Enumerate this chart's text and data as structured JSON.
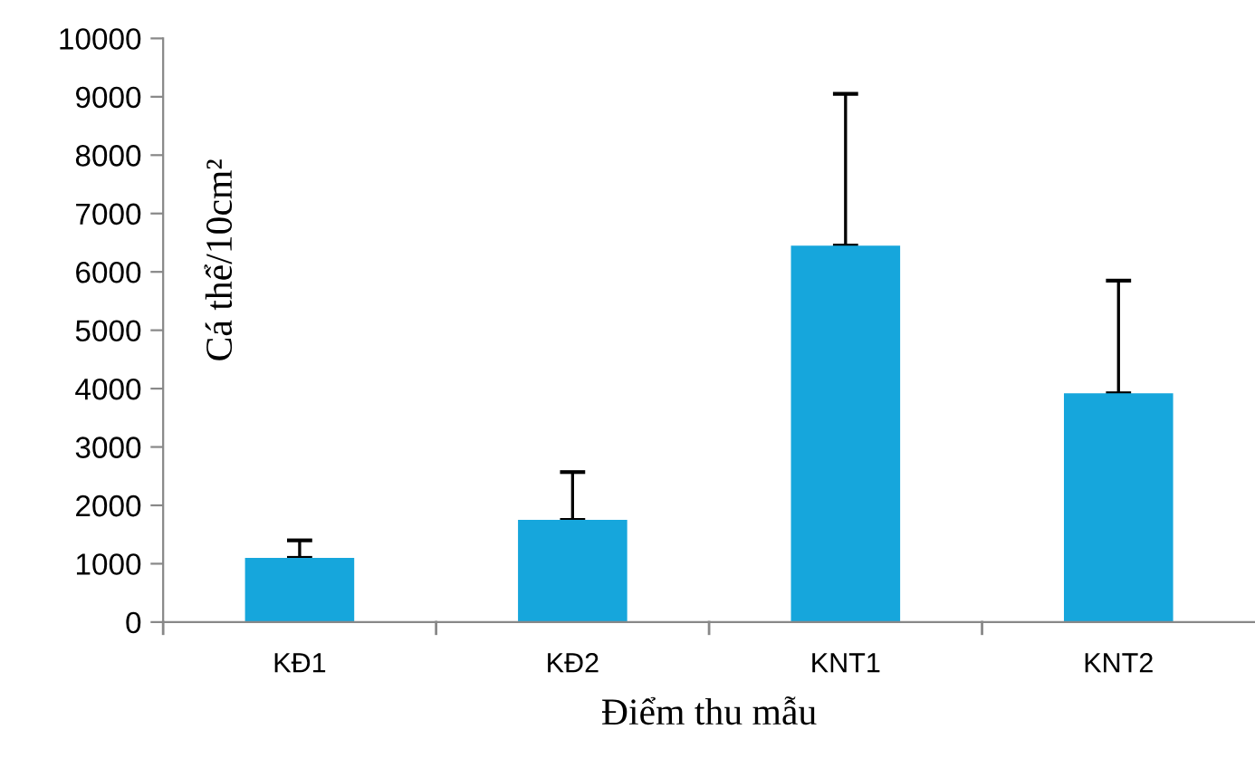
{
  "chart_data": {
    "type": "bar",
    "xlabel": "Điểm thu mẫu",
    "ylabel": "Cá thể/10cm²",
    "categories": [
      "KĐ1",
      "KĐ2",
      "KNT1",
      "KNT2"
    ],
    "values": [
      1100,
      1750,
      6450,
      3920
    ],
    "errors": [
      [
        1100,
        1400
      ],
      [
        1750,
        2570
      ],
      [
        6450,
        9050
      ],
      [
        3920,
        5850
      ]
    ],
    "color": "#16a6dc",
    "ylim": [
      0,
      10000
    ],
    "yticks": [
      0,
      1000,
      2000,
      3000,
      4000,
      5000,
      6000,
      7000,
      8000,
      9000,
      10000
    ],
    "grid": false,
    "legend": false
  }
}
